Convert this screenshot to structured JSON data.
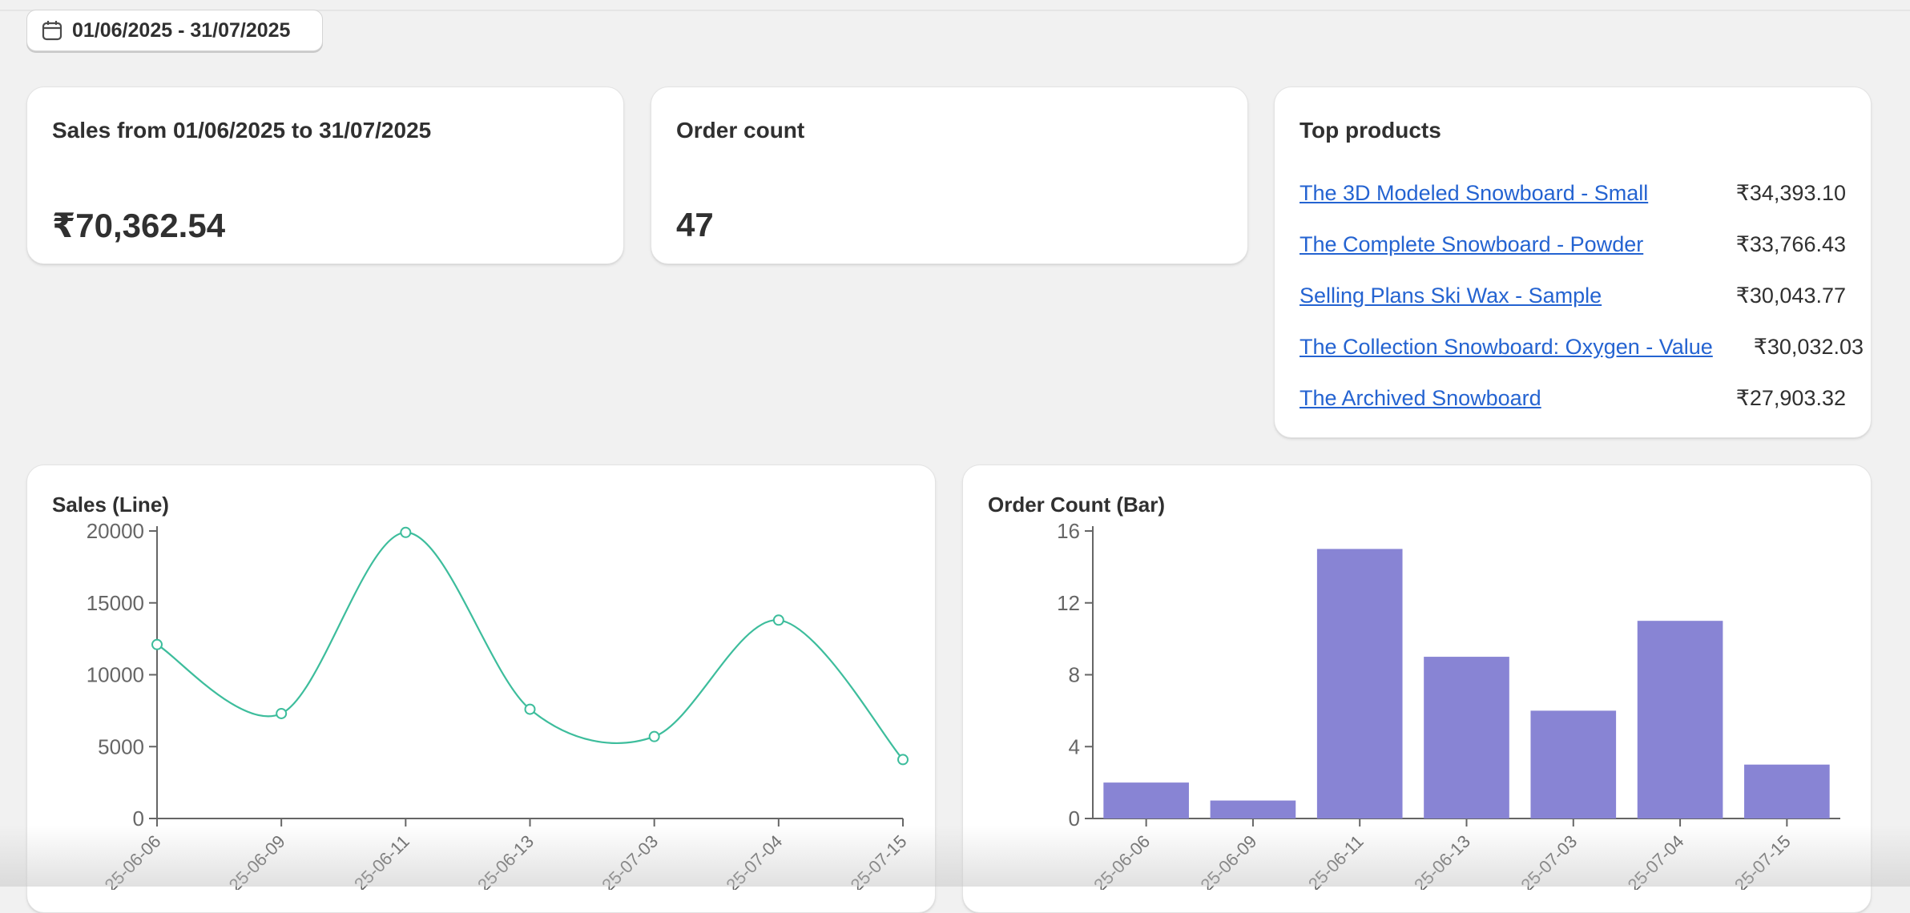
{
  "date_range": {
    "label": "01/06/2025 - 31/07/2025",
    "icon": "calendar-icon"
  },
  "sales_card": {
    "title": "Sales from 01/06/2025 to 31/07/2025",
    "value": "₹70,362.54"
  },
  "orders_card": {
    "title": "Order count",
    "value": "47"
  },
  "top_products": {
    "title": "Top products",
    "items": [
      {
        "name": "The 3D Modeled Snowboard - Small",
        "amount": "₹34,393.10"
      },
      {
        "name": "The Complete Snowboard - Powder",
        "amount": "₹33,766.43"
      },
      {
        "name": "Selling Plans Ski Wax - Sample",
        "amount": "₹30,043.77"
      },
      {
        "name": "The Collection Snowboard: Oxygen - Value",
        "amount": "₹30,032.03"
      },
      {
        "name": "The Archived Snowboard",
        "amount": "₹27,903.32"
      }
    ]
  },
  "colors": {
    "line": "#3dbd9c",
    "bar": "#8884d4",
    "link": "#2463d1"
  },
  "chart_data": [
    {
      "type": "line",
      "title": "Sales (Line)",
      "categories": [
        "2025-06-06",
        "2025-06-09",
        "2025-06-11",
        "2025-06-13",
        "2025-07-03",
        "2025-07-04",
        "2025-07-15"
      ],
      "tick_labels": [
        "25-06-06",
        "25-06-09",
        "25-06-11",
        "25-06-13",
        "25-07-03",
        "25-07-04",
        "25-07-15"
      ],
      "values": [
        12100,
        7300,
        19900,
        7600,
        5700,
        13800,
        4100
      ],
      "ylim": [
        0,
        20000
      ],
      "yticks": [
        0,
        5000,
        10000,
        15000,
        20000
      ],
      "xlabel": "",
      "ylabel": ""
    },
    {
      "type": "bar",
      "title": "Order Count (Bar)",
      "categories": [
        "2025-06-06",
        "2025-06-09",
        "2025-06-11",
        "2025-06-13",
        "2025-07-03",
        "2025-07-04",
        "2025-07-15"
      ],
      "tick_labels": [
        "25-06-06",
        "25-06-09",
        "25-06-11",
        "25-06-13",
        "25-07-03",
        "25-07-04",
        "25-07-15"
      ],
      "values": [
        2,
        1,
        15,
        9,
        6,
        11,
        3
      ],
      "ylim": [
        0,
        16
      ],
      "yticks": [
        0,
        4,
        8,
        12,
        16
      ],
      "xlabel": "",
      "ylabel": ""
    }
  ]
}
